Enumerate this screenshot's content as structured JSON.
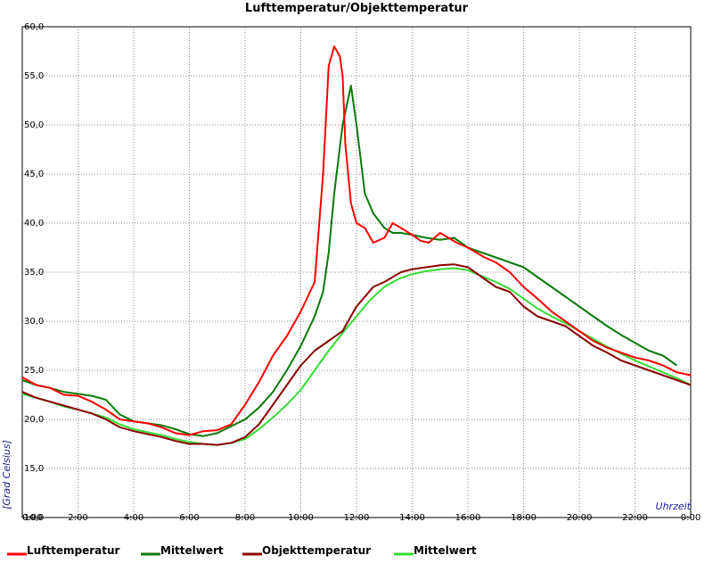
{
  "chart_data": {
    "type": "line",
    "title": "Lufttemperatur/Objekttemperatur",
    "xlabel": "Uhrzeit",
    "ylabel": "[Grad Celsius]",
    "xlim": [
      0,
      24
    ],
    "ylim": [
      10,
      60
    ],
    "x_tick_labels": [
      "0:00",
      "2:00",
      "4:00",
      "6:00",
      "8:00",
      "10:00",
      "12:00",
      "14:00",
      "16:00",
      "18:00",
      "20:00",
      "22:00",
      "0:00"
    ],
    "y_tick_labels": [
      "10,0",
      "15,0",
      "20,0",
      "25,0",
      "30,0",
      "35,0",
      "40,0",
      "45,0",
      "50,0",
      "55,0",
      "60,0"
    ],
    "grid": true,
    "legend_position": "bottom",
    "series": [
      {
        "name": "Lufttemperatur",
        "color": "#ff0000",
        "x": [
          0,
          0.5,
          1,
          1.5,
          2,
          2.5,
          3,
          3.5,
          4,
          4.5,
          5,
          5.5,
          6,
          6.5,
          7,
          7.5,
          8,
          8.5,
          9,
          9.5,
          10,
          10.5,
          10.8,
          11,
          11.2,
          11.4,
          11.5,
          11.6,
          11.8,
          12,
          12.3,
          12.6,
          13,
          13.3,
          13.6,
          14,
          14.3,
          14.6,
          15,
          15.3,
          15.6,
          16,
          16.3,
          16.6,
          17,
          17.5,
          18,
          18.5,
          19,
          19.5,
          20,
          20.5,
          21,
          21.5,
          22,
          22.5,
          23,
          23.5,
          24
        ],
        "y": [
          24.3,
          23.5,
          23.2,
          22.5,
          22.4,
          21.8,
          21.0,
          20.0,
          19.8,
          19.6,
          19.2,
          18.6,
          18.4,
          18.8,
          18.9,
          19.5,
          21.5,
          23.8,
          26.5,
          28.5,
          31.0,
          34.0,
          45.0,
          56.0,
          58.0,
          57.0,
          55.0,
          48.0,
          42.0,
          40.0,
          39.5,
          38.0,
          38.5,
          40.0,
          39.5,
          38.8,
          38.2,
          38.0,
          39.0,
          38.5,
          38.0,
          37.5,
          37.0,
          36.5,
          36.0,
          35.0,
          33.5,
          32.3,
          31.0,
          30.0,
          29.0,
          28.0,
          27.3,
          26.8,
          26.3,
          26.0,
          25.5,
          24.8,
          24.5
        ]
      },
      {
        "name": "Mittelwert",
        "color": "#0a7a0a",
        "x": [
          0,
          0.5,
          1,
          1.5,
          2,
          2.5,
          3,
          3.5,
          4,
          4.5,
          5,
          5.5,
          6,
          6.5,
          7,
          7.5,
          8,
          8.5,
          9,
          9.5,
          10,
          10.5,
          10.8,
          11,
          11.2,
          11.5,
          11.8,
          12,
          12.3,
          12.6,
          13,
          13.3,
          13.6,
          14,
          14.5,
          15,
          15.5,
          16,
          16.5,
          17,
          17.5,
          18,
          18.5,
          19,
          19.5,
          20,
          20.5,
          21,
          21.5,
          22,
          22.5,
          23,
          23.5
        ],
        "y": [
          24.0,
          23.5,
          23.2,
          22.8,
          22.6,
          22.4,
          22.0,
          20.5,
          19.8,
          19.6,
          19.4,
          19.0,
          18.5,
          18.3,
          18.6,
          19.3,
          20.0,
          21.2,
          22.8,
          25.0,
          27.5,
          30.5,
          33.0,
          37.0,
          43.0,
          50.0,
          54.0,
          50.0,
          43.0,
          41.0,
          39.5,
          39.0,
          39.0,
          38.8,
          38.5,
          38.3,
          38.5,
          37.5,
          37.0,
          36.5,
          36.0,
          35.5,
          34.5,
          33.5,
          32.5,
          31.5,
          30.5,
          29.5,
          28.6,
          27.8,
          27.0,
          26.5,
          25.5
        ]
      },
      {
        "name": "Objekttemperatur",
        "color": "#8b0000",
        "x": [
          0,
          0.5,
          1,
          1.5,
          2,
          2.5,
          3,
          3.5,
          4,
          4.5,
          5,
          5.5,
          6,
          6.5,
          7,
          7.5,
          8,
          8.5,
          9,
          9.5,
          10,
          10.5,
          11,
          11.5,
          12,
          12.3,
          12.6,
          13,
          13.3,
          13.6,
          14,
          14.5,
          15,
          15.5,
          16,
          16.5,
          17,
          17.5,
          18,
          18.5,
          19,
          19.5,
          20,
          20.5,
          21,
          21.5,
          22,
          22.5,
          23,
          23.5,
          24
        ],
        "y": [
          22.8,
          22.2,
          21.8,
          21.4,
          21.0,
          20.6,
          20.0,
          19.2,
          18.8,
          18.5,
          18.2,
          17.8,
          17.5,
          17.5,
          17.4,
          17.6,
          18.2,
          19.5,
          21.5,
          23.5,
          25.5,
          27.0,
          28.0,
          29.0,
          31.5,
          32.5,
          33.5,
          34.0,
          34.5,
          35.0,
          35.3,
          35.5,
          35.7,
          35.8,
          35.5,
          34.5,
          33.5,
          33.0,
          31.5,
          30.5,
          30.0,
          29.5,
          28.5,
          27.5,
          26.8,
          26.0,
          25.5,
          25.0,
          24.5,
          24.0,
          23.5
        ]
      },
      {
        "name": "Mittelwert",
        "color": "#33dd33",
        "x": [
          0,
          0.5,
          1,
          1.5,
          2,
          2.5,
          3,
          3.5,
          4,
          4.5,
          5,
          5.5,
          6,
          6.5,
          7,
          7.5,
          8,
          8.5,
          9,
          9.5,
          10,
          10.5,
          11,
          11.5,
          12,
          12.5,
          13,
          13.5,
          14,
          14.5,
          15,
          15.5,
          16,
          16.5,
          17,
          17.5,
          18,
          18.5,
          19,
          19.5,
          20,
          20.5,
          21,
          21.5,
          22,
          22.5,
          23,
          23.5,
          24
        ],
        "y": [
          22.6,
          22.2,
          21.8,
          21.3,
          21.0,
          20.6,
          20.2,
          19.5,
          19.0,
          18.7,
          18.4,
          18.0,
          17.7,
          17.5,
          17.4,
          17.6,
          18.0,
          19.0,
          20.2,
          21.5,
          23.0,
          25.0,
          27.0,
          28.8,
          30.5,
          32.2,
          33.5,
          34.3,
          34.8,
          35.1,
          35.3,
          35.4,
          35.2,
          34.6,
          34.0,
          33.3,
          32.3,
          31.3,
          30.5,
          29.8,
          29.0,
          28.2,
          27.4,
          26.7,
          26.0,
          25.4,
          24.8,
          24.2,
          23.5
        ]
      }
    ]
  }
}
